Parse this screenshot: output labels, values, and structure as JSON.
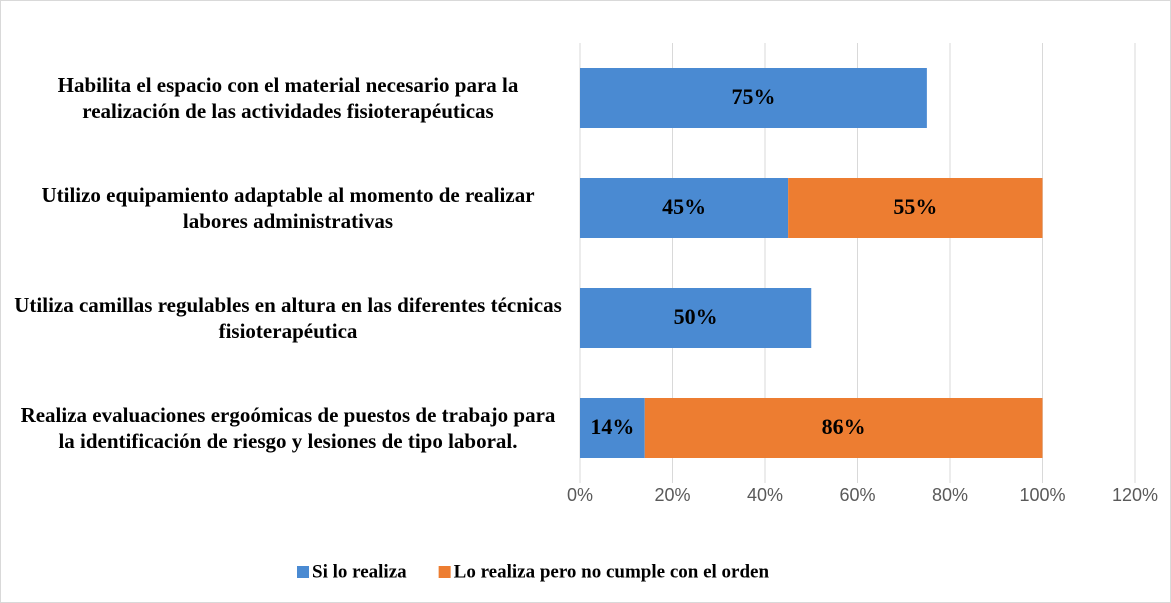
{
  "chart_data": {
    "type": "stacked_barh",
    "categories": [
      "Habilita el espacio con el material necesario para la realización de las actividades fisioterapéuticas",
      "Utilizo equipamiento adaptable al momento de realizar labores administrativas",
      "Utiliza camillas regulables en altura en las diferentes técnicas fisioterapéutica",
      "Realiza evaluaciones ergoómicas de puestos de trabajo para la identificación de riesgo y lesiones de tipo laboral."
    ],
    "series": [
      {
        "name": "Si lo realiza",
        "color": "#4a8ad2",
        "values": [
          75,
          45,
          50,
          14
        ],
        "value_labels": [
          "75%",
          "45%",
          "50%",
          "14%"
        ]
      },
      {
        "name": "Lo realiza pero no cumple con el orden",
        "color": "#ed7d31",
        "values": [
          null,
          55,
          null,
          86
        ],
        "value_labels": [
          null,
          "55%",
          null,
          "86%"
        ]
      }
    ],
    "xlim": [
      0,
      120
    ],
    "xticks": [
      {
        "value": 0,
        "label": "0%"
      },
      {
        "value": 20,
        "label": "20%"
      },
      {
        "value": 40,
        "label": "40%"
      },
      {
        "value": 60,
        "label": "60%"
      },
      {
        "value": 80,
        "label": "80%"
      },
      {
        "value": 100,
        "label": "100%"
      },
      {
        "value": 120,
        "label": "120%"
      }
    ],
    "grid": true,
    "legend": "bottom"
  }
}
